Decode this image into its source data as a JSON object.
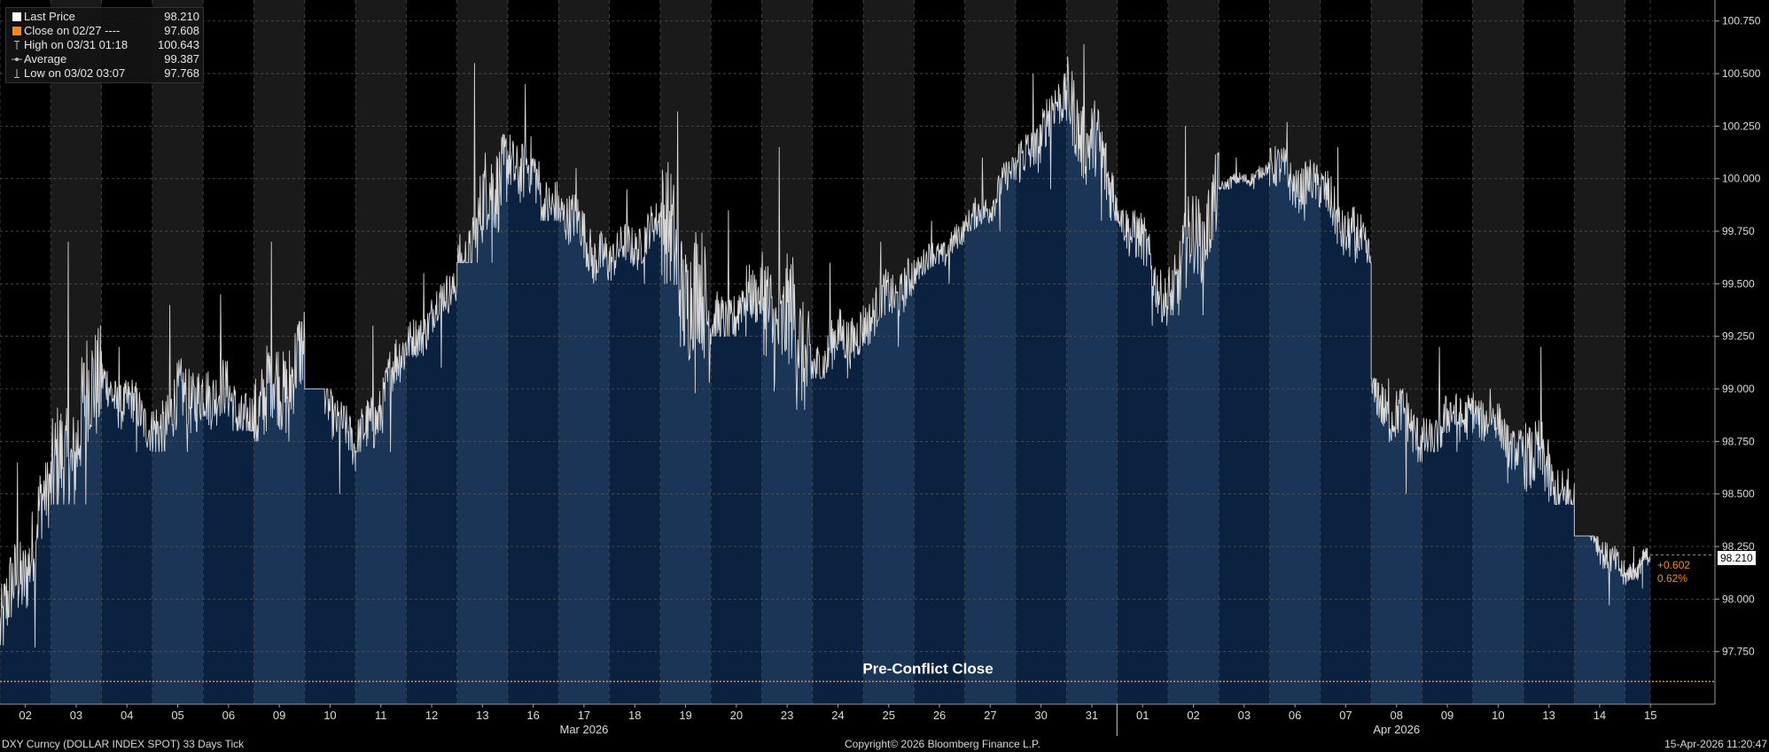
{
  "legend": {
    "rows": [
      {
        "label": "Last Price",
        "value": "98.210",
        "icon": "white-square-icon",
        "color": "#ffffff"
      },
      {
        "label": "Close on 02/27 ----",
        "value": "97.608",
        "icon": "orange-square-icon",
        "color": "#f08a24"
      },
      {
        "label": "High on 03/31 01:18",
        "value": "100.643",
        "icon": "high-marker-icon",
        "color": "#bbbbbb"
      },
      {
        "label": "Average",
        "value": "99.387",
        "icon": "average-marker-icon",
        "color": "#bbbbbb"
      },
      {
        "label": "Low on 03/02 03:07",
        "value": "97.768",
        "icon": "low-marker-icon",
        "color": "#bbbbbb"
      }
    ]
  },
  "annotations": {
    "change_abs": "+0.602",
    "change_pct": "0.62%",
    "last_tag": "98.210",
    "reference_line_label": "Pre-Conflict Close"
  },
  "footer": {
    "left": "DXY Curncy (DOLLAR INDEX SPOT) 33 Days Tick",
    "center": "Copyright© 2026 Bloomberg Finance L.P.",
    "right": "15-Apr-2026 11:20:47"
  },
  "colors": {
    "background": "#000000",
    "band_dark": "#1a1a1a",
    "fill_dark": "#0b2140",
    "fill_light": "#1a3556",
    "line": "#d8d8d8",
    "reference": "#f08a24",
    "grid": "#555555"
  },
  "chart_data": {
    "type": "area",
    "title": "",
    "series_name": "Last Price",
    "ylim": [
      97.5,
      100.85
    ],
    "yticks": [
      "97.750",
      "98.000",
      "98.250",
      "98.500",
      "98.750",
      "99.000",
      "99.250",
      "99.500",
      "99.750",
      "100.000",
      "100.250",
      "100.500",
      "100.750"
    ],
    "month_labels": [
      "Mar 2026",
      "Apr 2026"
    ],
    "reference_line": {
      "label": "Pre-Conflict Close",
      "value": 97.608
    },
    "last_price": 98.21,
    "days": [
      {
        "label": "02",
        "open": 97.85,
        "close": 98.55,
        "high": 98.65,
        "low": 97.77
      },
      {
        "label": "03",
        "open": 98.55,
        "close": 99.05,
        "high": 99.7,
        "low": 98.45
      },
      {
        "label": "04",
        "open": 99.05,
        "close": 98.8,
        "high": 99.2,
        "low": 98.7
      },
      {
        "label": "05",
        "open": 98.8,
        "close": 99.0,
        "high": 99.4,
        "low": 98.7
      },
      {
        "label": "06",
        "open": 99.0,
        "close": 98.85,
        "high": 99.45,
        "low": 98.8
      },
      {
        "label": "09",
        "open": 98.85,
        "close": 99.2,
        "high": 99.7,
        "low": 98.75
      },
      {
        "label": "10",
        "open": 99.2,
        "close": 98.7,
        "high": 99.0,
        "low": 98.5
      },
      {
        "label": "11",
        "open": 98.7,
        "close": 99.2,
        "high": 99.3,
        "low": 98.7
      },
      {
        "label": "12",
        "open": 99.2,
        "close": 99.5,
        "high": 99.55,
        "low": 99.1
      },
      {
        "label": "13",
        "open": 99.5,
        "close": 100.1,
        "high": 100.55,
        "low": 99.6
      },
      {
        "label": "16",
        "open": 100.1,
        "close": 99.85,
        "high": 100.45,
        "low": 99.8
      },
      {
        "label": "17",
        "open": 99.85,
        "close": 99.6,
        "high": 100.05,
        "low": 99.5
      },
      {
        "label": "18",
        "open": 99.6,
        "close": 99.8,
        "high": 99.95,
        "low": 99.5
      },
      {
        "label": "19",
        "open": 99.8,
        "close": 99.3,
        "high": 100.32,
        "low": 98.98
      },
      {
        "label": "20",
        "open": 99.3,
        "close": 99.45,
        "high": 99.85,
        "low": 99.25
      },
      {
        "label": "23",
        "open": 99.45,
        "close": 99.1,
        "high": 100.15,
        "low": 98.9
      },
      {
        "label": "24",
        "open": 99.1,
        "close": 99.3,
        "high": 99.6,
        "low": 99.05
      },
      {
        "label": "25",
        "open": 99.3,
        "close": 99.55,
        "high": 99.7,
        "low": 99.2
      },
      {
        "label": "26",
        "open": 99.55,
        "close": 99.75,
        "high": 99.8,
        "low": 99.5
      },
      {
        "label": "27",
        "open": 99.75,
        "close": 100.05,
        "high": 100.1,
        "low": 99.75
      },
      {
        "label": "30",
        "open": 100.05,
        "close": 100.4,
        "high": 100.5,
        "low": 99.95
      },
      {
        "label": "31",
        "open": 100.4,
        "close": 99.9,
        "high": 100.64,
        "low": 99.8
      },
      {
        "label": "01",
        "open": 99.9,
        "close": 99.4,
        "high": 99.85,
        "low": 99.3
      },
      {
        "label": "02",
        "open": 99.4,
        "close": 99.95,
        "high": 100.25,
        "low": 99.35
      },
      {
        "label": "03",
        "open": 99.95,
        "close": 100.05,
        "high": 100.1,
        "low": 99.95
      },
      {
        "label": "06",
        "open": 100.05,
        "close": 99.95,
        "high": 100.27,
        "low": 99.8
      },
      {
        "label": "07",
        "open": 99.95,
        "close": 99.6,
        "high": 100.15,
        "low": 99.6
      },
      {
        "label": "08",
        "open": 99.0,
        "close": 98.75,
        "high": 99.05,
        "low": 98.5
      },
      {
        "label": "09",
        "open": 98.75,
        "close": 98.9,
        "high": 99.2,
        "low": 98.7
      },
      {
        "label": "10",
        "open": 98.9,
        "close": 98.7,
        "high": 99.0,
        "low": 98.55
      },
      {
        "label": "13",
        "open": 98.7,
        "close": 98.45,
        "high": 99.2,
        "low": 98.45
      },
      {
        "label": "14",
        "open": 98.45,
        "close": 98.1,
        "high": 98.3,
        "low": 97.97
      },
      {
        "label": "15",
        "open": 98.1,
        "close": 98.21,
        "high": 98.25,
        "low": 98.05
      }
    ]
  }
}
